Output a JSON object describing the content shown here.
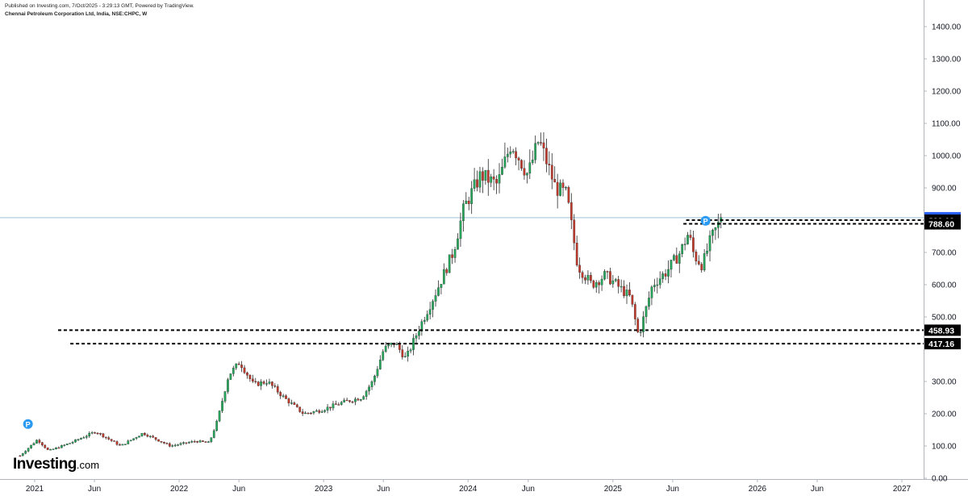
{
  "header": {
    "published": "Published on Investing.com, 7/Oct/2025 - 3:29:13 GMT, Powered by TradingView.",
    "symbol": "Chennai Petroleum Corporation Ltd, India, NSE:CHPC, W"
  },
  "logo": {
    "name": "Investing",
    "suffix": ".com"
  },
  "chart_data": {
    "type": "candlestick",
    "interval": "weekly",
    "ylim": [
      0,
      1400
    ],
    "y_ticks": [
      "1400.00",
      "1300.00",
      "1200.00",
      "1100.00",
      "1000.00",
      "900.00",
      "700.00",
      "600.00",
      "500.00",
      "300.00",
      "200.00",
      "100.00",
      "0.00"
    ],
    "x_ticks": [
      "2021",
      "Jun",
      "2022",
      "Jun",
      "2023",
      "Jun",
      "2024",
      "Jun",
      "2025",
      "Jun",
      "2026",
      "Jun",
      "2027"
    ],
    "x_tick_dates": [
      "2021-01-01",
      "2021-06-01",
      "2022-01-01",
      "2022-06-01",
      "2023-01-01",
      "2023-06-01",
      "2024-01-01",
      "2024-06-01",
      "2025-01-01",
      "2025-06-01",
      "2026-01-01",
      "2026-06-01",
      "2027-01-01"
    ],
    "current_price": 807.7,
    "levels": [
      {
        "label": "807.70",
        "value": 807.7,
        "style": "current",
        "color": "#2962ff"
      },
      {
        "label": "800.19",
        "value": 800.19,
        "style": "dashed",
        "color": "#000000",
        "start": "2025-07-05"
      },
      {
        "label": "788.60",
        "value": 788.6,
        "style": "dashed",
        "color": "#000000",
        "start": "2025-06-28"
      },
      {
        "label": "458.93",
        "value": 458.93,
        "style": "dashed",
        "color": "#000000",
        "start": "2021-03-01"
      },
      {
        "label": "417.16",
        "value": 417.16,
        "style": "dashed",
        "color": "#000000",
        "start": "2021-04-01"
      }
    ],
    "colors": {
      "up": "#26a65b",
      "down": "#c0392b",
      "current_line": "#9cc3d5",
      "axis": "#b2b5be"
    },
    "markers": [
      {
        "label": "P",
        "date": "2020-12-15",
        "value": 168
      },
      {
        "label": "P",
        "date": "2025-08-23",
        "value": 798
      }
    ],
    "path_points": [
      [
        "2020-11-25",
        70
      ],
      [
        "2021-01-08",
        120
      ],
      [
        "2021-02-05",
        85
      ],
      [
        "2021-04-02",
        110
      ],
      [
        "2021-06-04",
        145
      ],
      [
        "2021-08-06",
        100
      ],
      [
        "2021-10-01",
        140
      ],
      [
        "2021-12-10",
        100
      ],
      [
        "2022-02-11",
        115
      ],
      [
        "2022-03-18",
        110
      ],
      [
        "2022-04-08",
        180
      ],
      [
        "2022-05-06",
        320
      ],
      [
        "2022-06-03",
        360
      ],
      [
        "2022-07-08",
        290
      ],
      [
        "2022-08-12",
        300
      ],
      [
        "2022-09-23",
        250
      ],
      [
        "2022-11-11",
        200
      ],
      [
        "2022-12-23",
        210
      ],
      [
        "2023-02-17",
        235
      ],
      [
        "2023-04-07",
        250
      ],
      [
        "2023-05-05",
        300
      ],
      [
        "2023-06-02",
        400
      ],
      [
        "2023-06-30",
        420
      ],
      [
        "2023-07-28",
        370
      ],
      [
        "2023-09-01",
        470
      ],
      [
        "2023-10-13",
        580
      ],
      [
        "2023-11-24",
        700
      ],
      [
        "2023-12-22",
        840
      ],
      [
        "2024-02-02",
        940
      ],
      [
        "2024-03-15",
        910
      ],
      [
        "2024-04-19",
        1040
      ],
      [
        "2024-05-31",
        940
      ],
      [
        "2024-06-28",
        1050
      ],
      [
        "2024-08-09",
        900
      ],
      [
        "2024-09-06",
        880
      ],
      [
        "2024-10-04",
        660
      ],
      [
        "2024-11-08",
        600
      ],
      [
        "2024-12-13",
        630
      ],
      [
        "2025-01-10",
        600
      ],
      [
        "2025-02-14",
        560
      ],
      [
        "2025-03-07",
        440
      ],
      [
        "2025-04-11",
        600
      ],
      [
        "2025-05-16",
        640
      ],
      [
        "2025-06-20",
        700
      ],
      [
        "2025-07-11",
        760
      ],
      [
        "2025-07-25",
        690
      ],
      [
        "2025-08-15",
        660
      ],
      [
        "2025-09-05",
        740
      ],
      [
        "2025-10-03",
        808
      ]
    ]
  }
}
